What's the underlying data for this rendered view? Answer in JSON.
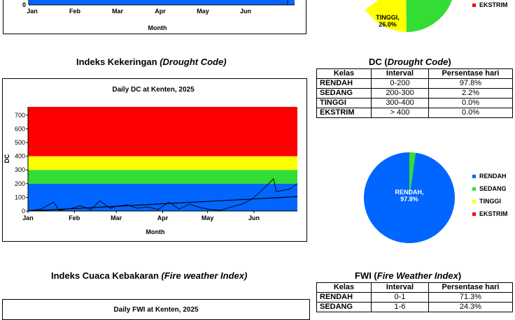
{
  "top_fragment": {
    "months": [
      "Jan",
      "Feb",
      "Mar",
      "Apr",
      "May",
      "Jun"
    ],
    "y_zero": "0",
    "xlabel": "Month",
    "pie_label_tinggi": "TINGGI,",
    "pie_label_tinggi_pct": "26.0%",
    "legend_ekstrim": "EKSTRIM"
  },
  "dc_section": {
    "title_plain": "Indeks Kekeringan ",
    "title_italic": "(Drought Code)",
    "table_title_plain": "DC (",
    "table_title_italic": "Drought Code",
    "table_title_close": ")",
    "table_headers": [
      "Kelas",
      "Interval",
      "Persentase hari"
    ],
    "table_rows": [
      [
        "RENDAH",
        "0-200",
        "97.8%"
      ],
      [
        "SEDANG",
        "200-300",
        "2.2%"
      ],
      [
        "TINGGI",
        "300-400",
        "0.0%"
      ],
      [
        "EKSTRIM",
        "> 400",
        "0.0%"
      ]
    ],
    "pie_label": "RENDAH,",
    "pie_pct": "97.8%",
    "legend": [
      "RENDAH",
      "SEDANG",
      "TINGGI",
      "EKSTRIM"
    ]
  },
  "fwi_section": {
    "title_plain": "Indeks Cuaca Kebakaran ",
    "title_italic": "(Fire weather Index)",
    "table_title_plain": "FWI (",
    "table_title_italic": "Fire Weather Index",
    "table_title_close": ")",
    "table_headers": [
      "Kelas",
      "Interval",
      "Persentase hari"
    ],
    "table_rows": [
      [
        "RENDAH",
        "0-1",
        "71.3%"
      ],
      [
        "SEDANG",
        "1-6",
        "24.3%"
      ]
    ],
    "chart_title_partial": "Daily FWI at Kenten, 2025"
  },
  "colors": {
    "rendah": "#0066ff",
    "sedang": "#33dd33",
    "tinggi": "#ffff00",
    "ekstrim": "#ff0000"
  },
  "chart_data": [
    {
      "type": "line",
      "title": "Daily DC at Kenten, 2025",
      "xlabel": "Month",
      "ylabel": "DC",
      "ylim": [
        0,
        760
      ],
      "yticks": [
        0,
        100,
        200,
        300,
        400,
        500,
        600,
        700
      ],
      "xticks": [
        "Jan",
        "Feb",
        "Mar",
        "Apr",
        "May",
        "Jun"
      ],
      "bands": [
        {
          "name": "RENDAH",
          "from": 0,
          "to": 200
        },
        {
          "name": "SEDANG",
          "from": 200,
          "to": 300
        },
        {
          "name": "TINGGI",
          "from": 300,
          "to": 400
        },
        {
          "name": "EKSTRIM",
          "from": 400,
          "to": 760
        }
      ],
      "series": [
        {
          "x": [
            "2025-01-01",
            "2025-01-10",
            "2025-01-18",
            "2025-01-22",
            "2025-01-30",
            "2025-02-05",
            "2025-02-12",
            "2025-02-18",
            "2025-02-25",
            "2025-03-01",
            "2025-03-08",
            "2025-03-15",
            "2025-03-22",
            "2025-03-29",
            "2025-04-05",
            "2025-04-12",
            "2025-04-19",
            "2025-04-26",
            "2025-05-03",
            "2025-05-10",
            "2025-05-17",
            "2025-05-24",
            "2025-05-31",
            "2025-06-05",
            "2025-06-10",
            "2025-06-14",
            "2025-06-16",
            "2025-06-20",
            "2025-06-25",
            "2025-06-30"
          ],
          "y": [
            0,
            15,
            65,
            5,
            20,
            40,
            10,
            75,
            20,
            35,
            45,
            20,
            30,
            10,
            65,
            15,
            50,
            25,
            10,
            5,
            30,
            50,
            90,
            140,
            190,
            235,
            140,
            150,
            160,
            200
          ]
        },
        {
          "x": [
            "2025-01-01",
            "2025-06-30"
          ],
          "y": [
            0,
            105
          ]
        }
      ]
    },
    {
      "type": "pie",
      "labels": [
        "RENDAH",
        "SEDANG",
        "TINGGI",
        "EKSTRIM"
      ],
      "values": [
        97.8,
        2.2,
        0.0,
        0.0
      ]
    }
  ]
}
